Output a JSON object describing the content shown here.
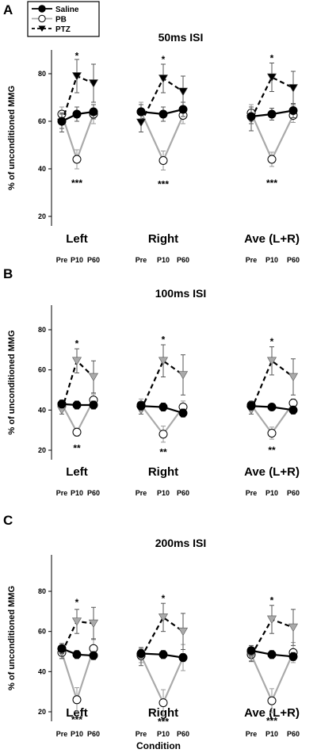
{
  "figure": {
    "xlabel": "Condition"
  },
  "legend": {
    "entries": [
      {
        "name": "Saline",
        "marker": "filled-circle",
        "color": "#000000"
      },
      {
        "name": "PB",
        "marker": "open-circle",
        "color": "#aaaaaa"
      },
      {
        "name": "PTZ",
        "marker": "filled-triangle-down",
        "color": "#000000"
      }
    ]
  },
  "chart_data": [
    {
      "type": "line",
      "panel_label": "A",
      "title": "50ms ISI",
      "ylabel": "% of unconditioned MMG",
      "ylim": [
        10,
        90
      ],
      "yticks": [
        20,
        40,
        60,
        80
      ],
      "groups": [
        "Left",
        "Right",
        "Ave (L+R)"
      ],
      "conditions": [
        "Pre",
        "P10",
        "P60"
      ],
      "pb_fill": "#ffffff",
      "ptz_fill": "#000000",
      "series": [
        {
          "name": "Saline",
          "values": [
            [
              60,
              63,
              64
            ],
            [
              64,
              63,
              65
            ],
            [
              62,
              63,
              64.5
            ]
          ],
          "errors": [
            [
              3,
              3,
              3
            ],
            [
              3,
              3,
              3
            ],
            [
              3,
              2.5,
              3
            ]
          ]
        },
        {
          "name": "PB",
          "values": [
            [
              63,
              44,
              63
            ],
            [
              64,
              43.5,
              62.5
            ],
            [
              63.5,
              44,
              62.5
            ]
          ],
          "errors": [
            [
              3,
              4,
              4
            ],
            [
              4,
              4,
              3.5
            ],
            [
              3.5,
              3,
              3
            ]
          ]
        },
        {
          "name": "PTZ",
          "values": [
            [
              59.5,
              79,
              76
            ],
            [
              59.5,
              78,
              72.5
            ],
            [
              61,
              78.5,
              74
            ]
          ],
          "errors": [
            [
              4,
              7,
              8
            ],
            [
              4,
              6,
              6.5
            ],
            [
              5,
              6,
              7
            ]
          ]
        }
      ],
      "annotations": [
        {
          "text": "*",
          "group": 0,
          "condition": 1,
          "y": 87.5
        },
        {
          "text": "***",
          "group": 0,
          "condition": 1,
          "y": 34
        },
        {
          "text": "*",
          "group": 1,
          "condition": 1,
          "y": 86
        },
        {
          "text": "***",
          "group": 1,
          "condition": 1,
          "y": 33.5
        },
        {
          "text": "*",
          "group": 2,
          "condition": 1,
          "y": 86.5
        },
        {
          "text": "***",
          "group": 2,
          "condition": 1,
          "y": 34
        }
      ]
    },
    {
      "type": "line",
      "panel_label": "B",
      "title": "100ms ISI",
      "ylabel": "% of unconditioned MMG",
      "ylim": [
        10,
        90
      ],
      "yticks": [
        20,
        40,
        60,
        80
      ],
      "groups": [
        "Left",
        "Right",
        "Ave (L+R)"
      ],
      "conditions": [
        "Pre",
        "P10",
        "P60"
      ],
      "pb_fill": "#ffffff",
      "ptz_fill": "#aaaaaa",
      "series": [
        {
          "name": "Saline",
          "values": [
            [
              43,
              42.5,
              42.5
            ],
            [
              42,
              41.5,
              38.5
            ],
            [
              42,
              41.5,
              40
            ]
          ],
          "errors": [
            [
              2,
              2,
              2
            ],
            [
              2,
              2,
              2
            ],
            [
              2,
              1.5,
              2
            ]
          ]
        },
        {
          "name": "PB",
          "values": [
            [
              43,
              29,
              45
            ],
            [
              42.5,
              28,
              41.5
            ],
            [
              42.5,
              28.5,
              43.5
            ]
          ],
          "errors": [
            [
              2,
              2,
              3
            ],
            [
              3,
              4,
              3
            ],
            [
              2,
              3,
              2
            ]
          ]
        },
        {
          "name": "PTZ",
          "values": [
            [
              40,
              64.5,
              56.5
            ],
            [
              40,
              64.5,
              57.5
            ],
            [
              40,
              64.5,
              56.5
            ]
          ],
          "errors": [
            [
              2,
              6,
              8
            ],
            [
              2,
              8,
              10
            ],
            [
              2,
              7,
              9
            ]
          ]
        }
      ],
      "annotations": [
        {
          "text": "*",
          "group": 0,
          "condition": 1,
          "y": 73
        },
        {
          "text": "**",
          "group": 0,
          "condition": 1,
          "y": 21
        },
        {
          "text": "*",
          "group": 1,
          "condition": 1,
          "y": 75
        },
        {
          "text": "**",
          "group": 1,
          "condition": 1,
          "y": 19
        },
        {
          "text": "*",
          "group": 2,
          "condition": 1,
          "y": 74
        },
        {
          "text": "**",
          "group": 2,
          "condition": 1,
          "y": 20
        }
      ]
    },
    {
      "type": "line",
      "panel_label": "C",
      "title": "200ms ISI",
      "ylabel": "% of unconditioned MMG",
      "ylim": [
        10,
        90
      ],
      "yticks": [
        20,
        40,
        60,
        80
      ],
      "groups": [
        "Left",
        "Right",
        "Ave (L+R)"
      ],
      "conditions": [
        "Pre",
        "P10",
        "P60"
      ],
      "pb_fill": "#ffffff",
      "ptz_fill": "#aaaaaa",
      "series": [
        {
          "name": "Saline",
          "values": [
            [
              51.5,
              48.5,
              48
            ],
            [
              49,
              48.5,
              47
            ],
            [
              50.5,
              48.5,
              47.5
            ]
          ],
          "errors": [
            [
              2.5,
              2,
              2
            ],
            [
              3,
              2,
              2
            ],
            [
              2.5,
              2,
              2
            ]
          ]
        },
        {
          "name": "PB",
          "values": [
            [
              49.5,
              26,
              51.5
            ],
            [
              48,
              24.5,
              47
            ],
            [
              48.5,
              25.5,
              49.5
            ]
          ],
          "errors": [
            [
              3,
              6,
              5
            ],
            [
              3.5,
              6.5,
              6.5
            ],
            [
              3,
              6,
              5
            ]
          ]
        },
        {
          "name": "PTZ",
          "values": [
            [
              49.5,
              65,
              64
            ],
            [
              47,
              67,
              60
            ],
            [
              48,
              66,
              62
            ]
          ],
          "errors": [
            [
              3,
              6,
              8
            ],
            [
              4,
              7,
              9
            ],
            [
              3,
              7,
              9
            ]
          ]
        }
      ],
      "annotations": [
        {
          "text": "*",
          "group": 0,
          "condition": 1,
          "y": 74.5
        },
        {
          "text": "***",
          "group": 0,
          "condition": 1,
          "y": 16
        },
        {
          "text": "*",
          "group": 1,
          "condition": 1,
          "y": 76.5
        },
        {
          "text": "***",
          "group": 1,
          "condition": 1,
          "y": 15
        },
        {
          "text": "*",
          "group": 2,
          "condition": 1,
          "y": 75.5
        },
        {
          "text": "***",
          "group": 2,
          "condition": 1,
          "y": 15.5
        }
      ]
    }
  ]
}
